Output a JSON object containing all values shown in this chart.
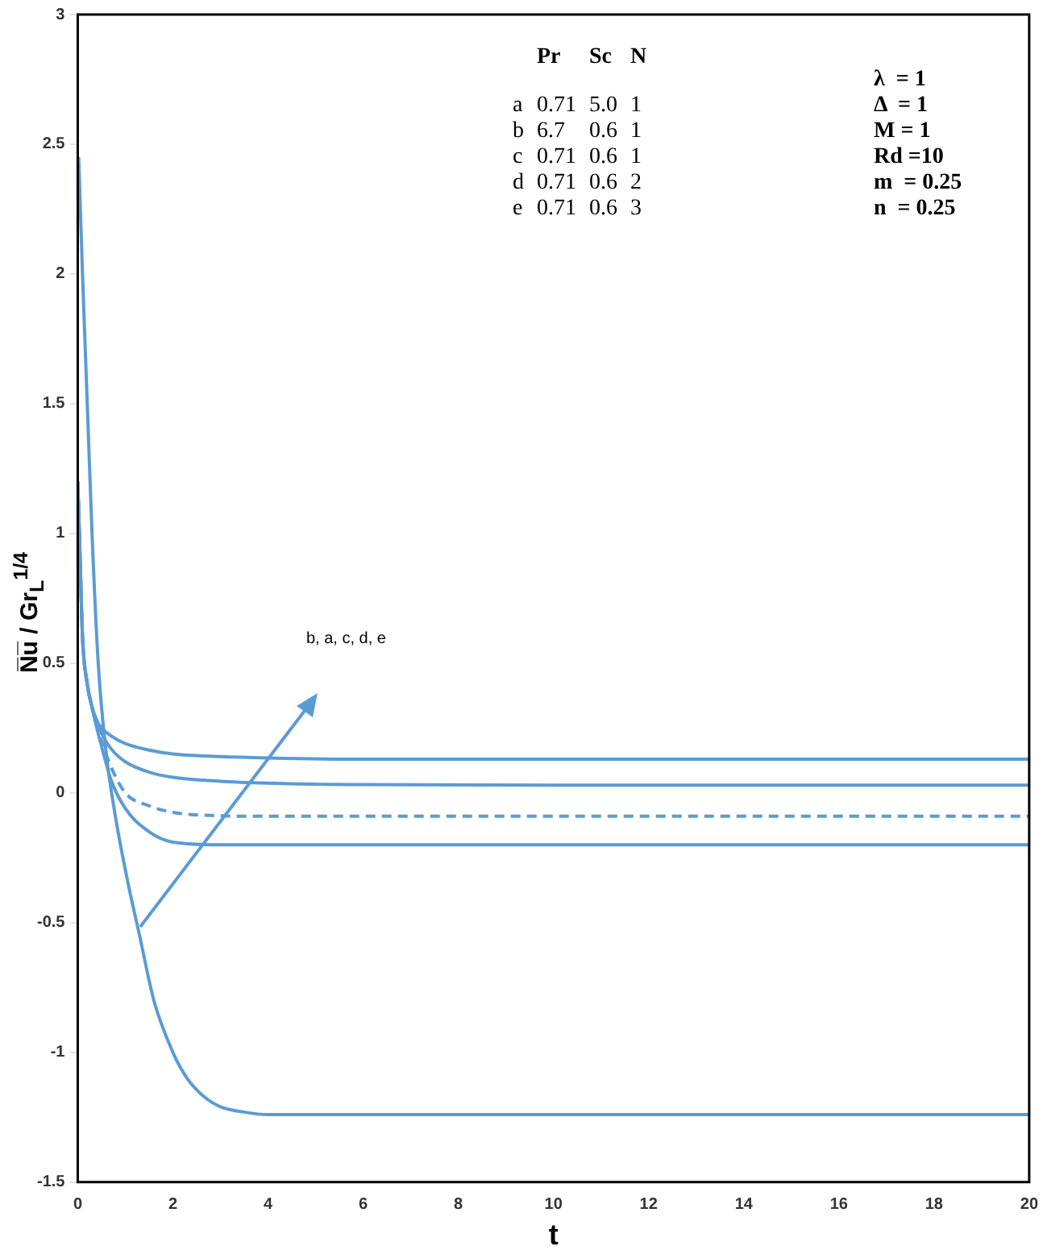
{
  "chart_data": {
    "type": "line",
    "xlabel": "t",
    "ylabel": "N̅u̅ / Gr$_{L}$$^{1/4}$",
    "xlim": [
      0,
      20
    ],
    "xticks": [
      0,
      2,
      4,
      6,
      8,
      10,
      12,
      14,
      16,
      18,
      20
    ],
    "ylim": [
      -1.5,
      3
    ],
    "yticks": [
      -1.5,
      -1,
      -0.5,
      0,
      0.5,
      1,
      1.5,
      2,
      2.5,
      3
    ],
    "grid": false,
    "legend": false,
    "marker": "none",
    "annotations": [
      "b, a, c, d, e",
      "Pr Sc N",
      "a 0.71 5.0 1",
      "b 6.7 0.6 1",
      "c 0.71 0.6 1",
      "d 0.71 0.6 2",
      "e 0.71 0.6 3",
      "λ  = 1",
      "Δ  = 1",
      "M = 1",
      "Rd =10",
      "m  = 0.25",
      "n  = 0.25"
    ],
    "series": [
      {
        "color": "#5b9bd5",
        "line_style": "solid",
        "x": [
          0.02,
          0.1,
          0.2,
          0.3,
          0.43,
          0.6,
          0.8,
          1.06,
          1.3,
          1.6,
          2,
          2.3,
          2.65,
          3,
          3.5,
          4,
          5,
          8,
          20
        ],
        "values": [
          2.45,
          2.0,
          1.5,
          1.0,
          0.5,
          0.15,
          -0.1,
          -0.35,
          -0.55,
          -0.8,
          -1.0,
          -1.1,
          -1.17,
          -1.21,
          -1.23,
          -1.24,
          -1.24,
          -1.24,
          -1.24
        ]
      },
      {
        "color": "#5b9bd5",
        "line_style": "solid",
        "x": [
          0,
          0.05,
          0.1,
          0.2,
          0.3,
          0.4,
          0.5,
          0.7,
          1,
          1.5,
          2,
          3,
          4,
          6,
          10,
          20
        ],
        "values": [
          1.2,
          0.9,
          0.6,
          0.42,
          0.33,
          0.25,
          0.18,
          0.05,
          -0.06,
          -0.15,
          -0.19,
          -0.2,
          -0.2,
          -0.2,
          -0.2,
          -0.2
        ]
      },
      {
        "color": "#5b9bd5",
        "line_style": "dashed",
        "x": [
          0,
          0.05,
          0.1,
          0.2,
          0.3,
          0.4,
          0.5,
          0.7,
          1,
          1.5,
          2,
          3,
          4,
          6,
          10,
          20
        ],
        "values": [
          1.2,
          0.9,
          0.6,
          0.42,
          0.33,
          0.26,
          0.2,
          0.1,
          0.0,
          -0.05,
          -0.075,
          -0.088,
          -0.09,
          -0.09,
          -0.09,
          -0.09
        ]
      },
      {
        "color": "#5b9bd5",
        "line_style": "solid",
        "x": [
          0,
          0.05,
          0.1,
          0.2,
          0.3,
          0.4,
          0.5,
          0.7,
          1,
          1.5,
          2,
          3,
          4,
          6,
          10,
          20
        ],
        "values": [
          1.2,
          0.9,
          0.6,
          0.42,
          0.33,
          0.27,
          0.23,
          0.17,
          0.12,
          0.08,
          0.06,
          0.045,
          0.038,
          0.032,
          0.03,
          0.03
        ]
      },
      {
        "color": "#5b9bd5",
        "line_style": "solid",
        "x": [
          0,
          0.05,
          0.1,
          0.2,
          0.3,
          0.4,
          0.5,
          0.7,
          1,
          1.5,
          2,
          3,
          4,
          6,
          10,
          20
        ],
        "values": [
          1.2,
          0.9,
          0.6,
          0.42,
          0.33,
          0.28,
          0.25,
          0.22,
          0.19,
          0.165,
          0.15,
          0.14,
          0.135,
          0.13,
          0.13,
          0.13
        ]
      }
    ]
  }
}
